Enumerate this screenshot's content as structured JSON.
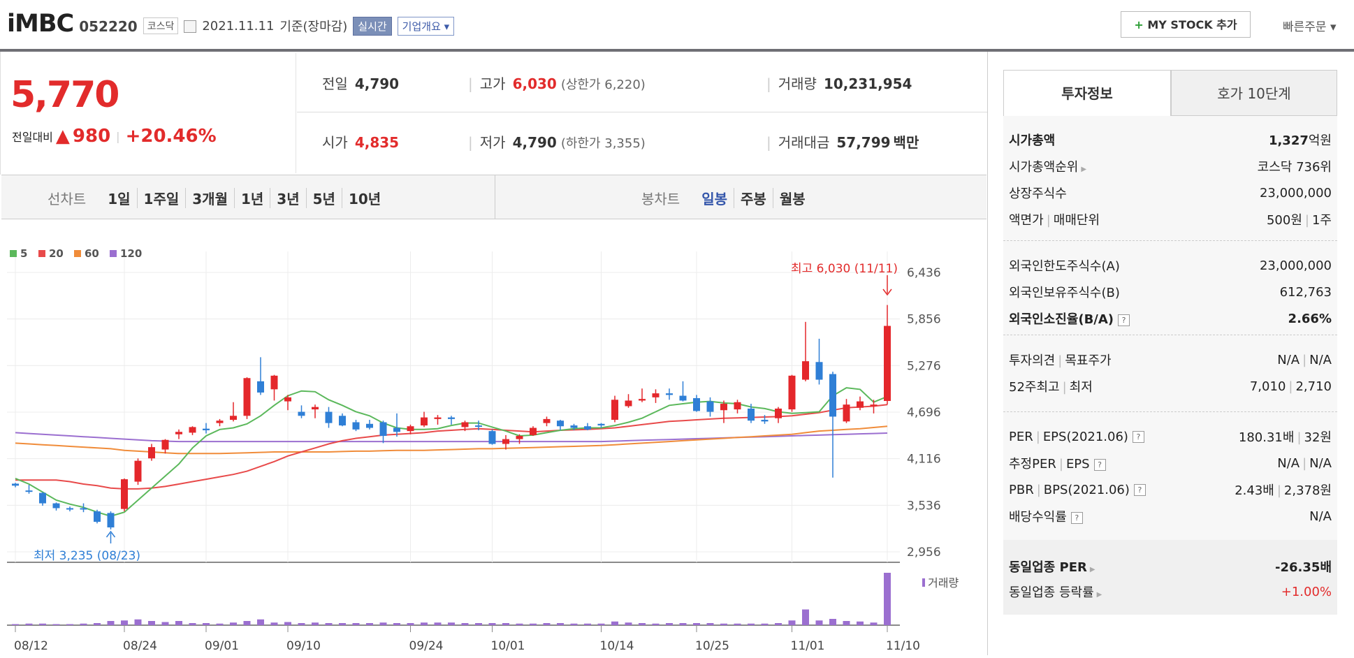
{
  "header": {
    "name": "iMBC",
    "code": "052220",
    "market": "코스닥",
    "date": "2021.11.11",
    "date_note": "기준(장마감)",
    "realtime": "실시간",
    "corp_info": "기업개요",
    "mystock_label": "MY STOCK 추가",
    "fast_order": "빠른주문"
  },
  "summary": {
    "price": "5,770",
    "change_label": "전일대비",
    "change_value": "980",
    "change_pct": "+20.46%",
    "prev_label": "전일",
    "prev": "4,790",
    "high_label": "고가",
    "high": "6,030",
    "upper_limit": "(상한가 6,220)",
    "volume_label": "거래량",
    "volume": "10,231,954",
    "open_label": "시가",
    "open": "4,835",
    "low_label": "저가",
    "low": "4,790",
    "lower_limit": "(하한가 3,355)",
    "amount_label": "거래대금",
    "amount": "57,799",
    "amount_unit": "백만"
  },
  "tabs": {
    "line_label": "선차트",
    "line": [
      "1일",
      "1주일",
      "3개월",
      "1년",
      "3년",
      "5년",
      "10년"
    ],
    "candle_label": "봉차트",
    "candle": [
      "일봉",
      "주봉",
      "월봉"
    ],
    "candle_active": "일봉"
  },
  "invest": {
    "tab_a": "투자정보",
    "tab_b": "호가 10단계",
    "market_cap_label": "시가총액",
    "market_cap": "1,327",
    "market_cap_unit": "억원",
    "rank_label": "시가총액순위",
    "rank": "코스닥 736위",
    "shares_label": "상장주식수",
    "shares": "23,000,000",
    "par_label": "액면가",
    "unit_label": "매매단위",
    "par": "500원",
    "unit": "1주",
    "foreign_limit_label": "외국인한도주식수(A)",
    "foreign_limit": "23,000,000",
    "foreign_hold_label": "외국인보유주식수(B)",
    "foreign_hold": "612,763",
    "foreign_ratio_label": "외국인소진율(B/A)",
    "foreign_ratio": "2.66%",
    "opinion_label": "투자의견",
    "target_label": "목표주가",
    "opinion": "N/A",
    "target": "N/A",
    "w52_label": "52주최고",
    "w52_low_label": "최저",
    "w52_high": "7,010",
    "w52_low": "2,710",
    "per_label": "PER",
    "eps_label": "EPS(2021.06)",
    "per": "180.31배",
    "eps": "32원",
    "est_per_label": "추정PER",
    "est_eps_label": "EPS",
    "est_per": "N/A",
    "est_eps": "N/A",
    "pbr_label": "PBR",
    "bps_label": "BPS(2021.06)",
    "pbr": "2.43배",
    "bps": "2,378원",
    "div_label": "배당수익률",
    "div": "N/A",
    "ind_per_label": "동일업종 PER",
    "ind_per": "-26.35배",
    "ind_chg_label": "동일업종 등락률",
    "ind_chg": "+1.00%"
  },
  "chart_data": {
    "type": "candlestick",
    "legend": [
      {
        "name": "5",
        "color": "#5bb85b"
      },
      {
        "name": "20",
        "color": "#e84a4a"
      },
      {
        "name": "60",
        "color": "#f08c3a"
      },
      {
        "name": "120",
        "color": "#9b6fd0"
      }
    ],
    "y_ticks": [
      "6,436",
      "5,856",
      "5,276",
      "4,696",
      "4,116",
      "3,536",
      "2,956"
    ],
    "ylim": [
      2956,
      6436
    ],
    "x_ticks": [
      "08/12",
      "08/24",
      "09/01",
      "09/10",
      "09/24",
      "10/01",
      "10/14",
      "10/25",
      "11/01",
      "11/10"
    ],
    "high_annotation": "최고 6,030 (11/11)",
    "low_annotation": "최저 3,235 (08/23)",
    "volume_label": "거래량",
    "candles": [
      [
        3805,
        3815,
        3760,
        3780
      ],
      [
        3720,
        3790,
        3680,
        3710
      ],
      [
        3690,
        3700,
        3530,
        3560
      ],
      [
        3560,
        3570,
        3470,
        3500
      ],
      [
        3500,
        3520,
        3460,
        3490
      ],
      [
        3500,
        3560,
        3450,
        3490
      ],
      [
        3460,
        3480,
        3310,
        3330
      ],
      [
        3440,
        3460,
        3235,
        3260
      ],
      [
        3490,
        3870,
        3460,
        3860
      ],
      [
        3830,
        4120,
        3790,
        4090
      ],
      [
        4120,
        4300,
        4090,
        4260
      ],
      [
        4230,
        4360,
        4180,
        4350
      ],
      [
        4420,
        4480,
        4360,
        4450
      ],
      [
        4440,
        4520,
        4410,
        4510
      ],
      [
        4490,
        4560,
        4430,
        4470
      ],
      [
        4560,
        4610,
        4520,
        4590
      ],
      [
        4600,
        4820,
        4580,
        4650
      ],
      [
        4650,
        5130,
        4610,
        5120
      ],
      [
        5080,
        5380,
        4910,
        4940
      ],
      [
        4980,
        5160,
        4840,
        5150
      ],
      [
        4830,
        4910,
        4720,
        4880
      ],
      [
        4700,
        4780,
        4620,
        4650
      ],
      [
        4730,
        4790,
        4620,
        4760
      ],
      [
        4700,
        4760,
        4500,
        4560
      ],
      [
        4650,
        4680,
        4520,
        4530
      ],
      [
        4570,
        4600,
        4460,
        4480
      ],
      [
        4550,
        4600,
        4480,
        4500
      ],
      [
        4570,
        4590,
        4310,
        4400
      ],
      [
        4500,
        4680,
        4390,
        4450
      ],
      [
        4460,
        4540,
        4420,
        4520
      ],
      [
        4530,
        4700,
        4510,
        4630
      ],
      [
        4610,
        4660,
        4540,
        4630
      ],
      [
        4630,
        4650,
        4540,
        4610
      ],
      [
        4510,
        4590,
        4460,
        4570
      ],
      [
        4530,
        4590,
        4470,
        4520
      ],
      [
        4460,
        4480,
        4290,
        4300
      ],
      [
        4300,
        4410,
        4230,
        4360
      ],
      [
        4360,
        4420,
        4300,
        4400
      ],
      [
        4410,
        4520,
        4400,
        4500
      ],
      [
        4560,
        4640,
        4520,
        4610
      ],
      [
        4590,
        4600,
        4470,
        4520
      ],
      [
        4530,
        4550,
        4470,
        4500
      ],
      [
        4520,
        4560,
        4470,
        4480
      ],
      [
        4550,
        4560,
        4500,
        4530
      ],
      [
        4600,
        4900,
        4570,
        4850
      ],
      [
        4770,
        4920,
        4750,
        4840
      ],
      [
        4840,
        4990,
        4820,
        4860
      ],
      [
        4880,
        4980,
        4810,
        4930
      ],
      [
        4930,
        4990,
        4850,
        4910
      ],
      [
        4900,
        5080,
        4830,
        4840
      ],
      [
        4870,
        4910,
        4700,
        4710
      ],
      [
        4830,
        4880,
        4640,
        4700
      ],
      [
        4720,
        4840,
        4560,
        4800
      ],
      [
        4730,
        4850,
        4680,
        4820
      ],
      [
        4740,
        4800,
        4560,
        4590
      ],
      [
        4600,
        4660,
        4550,
        4580
      ],
      [
        4620,
        4760,
        4560,
        4740
      ],
      [
        4730,
        5160,
        4700,
        5150
      ],
      [
        5100,
        5820,
        5080,
        5330
      ],
      [
        5320,
        5610,
        5040,
        5100
      ],
      [
        5170,
        5200,
        3880,
        4640
      ],
      [
        4580,
        4860,
        4560,
        4790
      ],
      [
        4750,
        4890,
        4720,
        4830
      ],
      [
        4790,
        4850,
        4680,
        4790
      ],
      [
        4835,
        6030,
        4790,
        5770
      ]
    ],
    "ma5": [
      3870,
      3800,
      3700,
      3600,
      3550,
      3510,
      3450,
      3400,
      3450,
      3600,
      3750,
      3900,
      4050,
      4250,
      4400,
      4480,
      4500,
      4550,
      4650,
      4780,
      4900,
      4960,
      4950,
      4850,
      4780,
      4700,
      4650,
      4560,
      4500,
      4480,
      4480,
      4490,
      4530,
      4560,
      4560,
      4510,
      4460,
      4400,
      4410,
      4440,
      4470,
      4490,
      4500,
      4500,
      4530,
      4570,
      4620,
      4700,
      4780,
      4800,
      4820,
      4830,
      4810,
      4800,
      4760,
      4740,
      4700,
      4680,
      4690,
      4700,
      4900,
      5000,
      4980,
      4820,
      4890
    ],
    "ma20": [
      3850,
      3850,
      3850,
      3850,
      3830,
      3800,
      3780,
      3750,
      3740,
      3740,
      3750,
      3770,
      3800,
      3830,
      3860,
      3890,
      3920,
      3960,
      4020,
      4080,
      4150,
      4200,
      4250,
      4300,
      4340,
      4370,
      4390,
      4410,
      4420,
      4430,
      4440,
      4460,
      4470,
      4480,
      4490,
      4480,
      4470,
      4460,
      4450,
      4460,
      4470,
      4475,
      4480,
      4490,
      4500,
      4520,
      4540,
      4560,
      4580,
      4590,
      4600,
      4610,
      4620,
      4625,
      4630,
      4635,
      4640,
      4650,
      4670,
      4690,
      4720,
      4750,
      4760,
      4770,
      4790
    ],
    "ma60": [
      4310,
      4300,
      4290,
      4280,
      4270,
      4260,
      4250,
      4240,
      4220,
      4210,
      4200,
      4190,
      4180,
      4180,
      4180,
      4180,
      4185,
      4190,
      4195,
      4200,
      4200,
      4200,
      4200,
      4200,
      4205,
      4210,
      4210,
      4215,
      4220,
      4220,
      4220,
      4225,
      4230,
      4235,
      4240,
      4240,
      4245,
      4250,
      4255,
      4260,
      4265,
      4270,
      4275,
      4280,
      4290,
      4300,
      4310,
      4320,
      4330,
      4340,
      4350,
      4360,
      4370,
      4380,
      4390,
      4400,
      4410,
      4420,
      4440,
      4460,
      4470,
      4480,
      4490,
      4505,
      4520
    ],
    "ma120": [
      4440,
      4430,
      4420,
      4410,
      4400,
      4390,
      4380,
      4370,
      4360,
      4350,
      4340,
      4335,
      4330,
      4330,
      4330,
      4330,
      4330,
      4330,
      4330,
      4330,
      4330,
      4330,
      4330,
      4330,
      4330,
      4330,
      4330,
      4330,
      4330,
      4330,
      4330,
      4330,
      4330,
      4330,
      4330,
      4330,
      4330,
      4330,
      4330,
      4330,
      4330,
      4330,
      4330,
      4330,
      4335,
      4340,
      4345,
      4350,
      4355,
      4360,
      4365,
      4370,
      4375,
      4380,
      4385,
      4390,
      4395,
      4400,
      4405,
      4410,
      4415,
      4420,
      4425,
      4430,
      4435
    ],
    "volumes": [
      2,
      3,
      3,
      2,
      2,
      3,
      4,
      8,
      9,
      11,
      8,
      6,
      8,
      4,
      4,
      3,
      5,
      8,
      11,
      5,
      6,
      4,
      5,
      4,
      4,
      4,
      4,
      5,
      4,
      4,
      5,
      5,
      5,
      4,
      4,
      4,
      4,
      3,
      3,
      4,
      4,
      3,
      3,
      3,
      7,
      5,
      4,
      3,
      4,
      4,
      4,
      4,
      3,
      3,
      3,
      3,
      4,
      9,
      30,
      9,
      12,
      8,
      7,
      5,
      100
    ]
  }
}
